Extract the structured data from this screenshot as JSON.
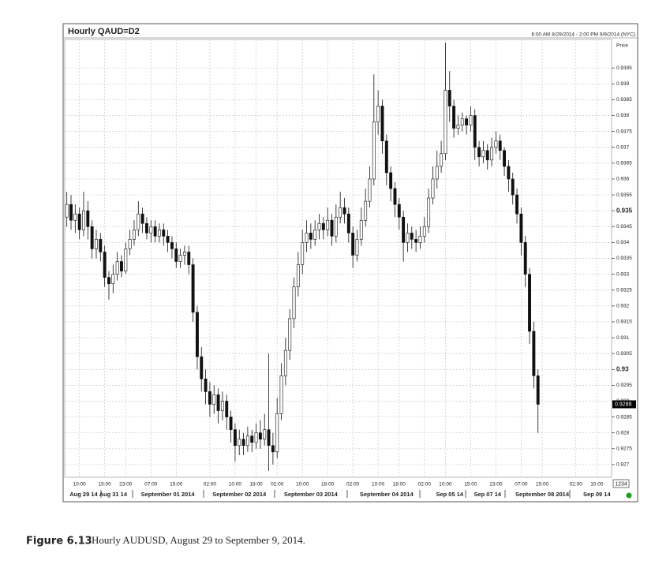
{
  "chart_data": {
    "type": "candlestick",
    "title": "Hourly QAUD=D2",
    "subtitle": "6:00 AM 8/29/2014 - 2:00 PM 9/9/2014 (NYC)",
    "y_label": "Price",
    "categories": [
      null,
      null,
      null,
      "10:00",
      null,
      null,
      null,
      null,
      null,
      "15:00",
      null,
      null,
      null,
      null,
      "23:00",
      null,
      null,
      null,
      null,
      null,
      "07:00",
      null,
      null,
      null,
      null,
      null,
      "15:00",
      null,
      null,
      null,
      null,
      null,
      null,
      null,
      "02:00",
      null,
      null,
      null,
      null,
      null,
      "10:00",
      null,
      null,
      null,
      null,
      "18:00",
      null,
      null,
      null,
      null,
      "02:00",
      null,
      null,
      null,
      null,
      null,
      "10:00",
      null,
      null,
      null,
      null,
      null,
      "18:00",
      null,
      null,
      null,
      null,
      null,
      "02:00",
      null,
      null,
      null,
      null,
      null,
      "10:00",
      null,
      null,
      null,
      null,
      "18:00",
      null,
      null,
      null,
      null,
      null,
      "02:00",
      null,
      null,
      null,
      null,
      "10:00",
      null,
      null,
      null,
      null,
      null,
      "15:00",
      null,
      null,
      null,
      null,
      null,
      "23:00",
      null,
      null,
      null,
      null,
      null,
      "07:00",
      null,
      null,
      null,
      null,
      "15:00",
      null,
      null,
      null,
      null,
      null,
      null,
      null,
      "02:00",
      null,
      null,
      null,
      null,
      "10:00",
      null,
      null,
      null
    ],
    "date_labels": [
      null,
      null,
      null,
      null,
      "Aug 29 14",
      null,
      null,
      null,
      null,
      null,
      null,
      "Aug 31 14",
      null,
      null,
      null,
      null,
      null,
      null,
      null,
      null,
      null,
      null,
      null,
      null,
      "September 01 2014",
      null,
      null,
      null,
      null,
      null,
      null,
      null,
      null,
      null,
      null,
      null,
      null,
      null,
      null,
      null,
      null,
      "September 02 2014",
      null,
      null,
      null,
      null,
      null,
      null,
      null,
      null,
      null,
      null,
      null,
      null,
      null,
      null,
      null,
      null,
      "September 03 2014",
      null,
      null,
      null,
      null,
      null,
      null,
      null,
      null,
      null,
      null,
      null,
      null,
      null,
      null,
      null,
      null,
      null,
      "September 04 2014",
      null,
      null,
      null,
      null,
      null,
      null,
      null,
      null,
      null,
      null,
      null,
      null,
      null,
      null,
      "Sep 05 14",
      null,
      null,
      null,
      null,
      null,
      null,
      null,
      null,
      "Sep 07 14",
      null,
      null,
      null,
      null,
      null,
      null,
      null,
      null,
      null,
      null,
      null,
      null,
      "September 08 2014",
      null,
      null,
      null,
      null,
      null,
      null,
      null,
      null,
      null,
      null,
      null,
      null,
      "Sep 09 14",
      null,
      null,
      null,
      null
    ],
    "open": [
      0.9348,
      0.9352,
      0.9347,
      0.9349,
      0.9344,
      0.935,
      0.9345,
      0.9338,
      0.9341,
      0.9337,
      0.9329,
      0.9327,
      0.933,
      0.9334,
      0.9331,
      0.9338,
      0.9341,
      0.9344,
      0.9349,
      0.9346,
      0.9343,
      0.9345,
      0.9342,
      0.9344,
      0.9342,
      0.934,
      0.9338,
      0.9334,
      0.9336,
      0.9337,
      0.9333,
      0.9318,
      0.9304,
      0.9297,
      0.9293,
      0.9289,
      0.9292,
      0.9287,
      0.929,
      0.9285,
      0.9281,
      0.9276,
      0.9278,
      0.9276,
      0.9279,
      0.9277,
      0.928,
      0.9278,
      0.9281,
      0.9276,
      0.9274,
      0.9286,
      0.9298,
      0.9306,
      0.9316,
      0.9326,
      0.9333,
      0.934,
      0.9343,
      0.9341,
      0.9344,
      0.9346,
      0.9344,
      0.9347,
      0.9342,
      0.9348,
      0.9351,
      0.9349,
      0.9343,
      0.9336,
      0.9341,
      0.9347,
      0.9353,
      0.936,
      0.9378,
      0.9383,
      0.9372,
      0.9362,
      0.9357,
      0.9352,
      0.9348,
      0.934,
      0.9343,
      0.9341,
      0.934,
      0.9342,
      0.9345,
      0.9354,
      0.936,
      0.9364,
      0.9368,
      0.9388,
      0.9383,
      0.9376,
      0.9377,
      0.9379,
      0.9377,
      0.938,
      0.937,
      0.9367,
      0.9369,
      0.9366,
      0.937,
      0.9372,
      0.9369,
      0.9364,
      0.936,
      0.9355,
      0.9349,
      0.934,
      0.933,
      0.9312,
      0.9298,
      null,
      null,
      null,
      null,
      null,
      null,
      null,
      null,
      null,
      null,
      null,
      null,
      null,
      null,
      null,
      null,
      null
    ],
    "high": [
      0.9356,
      0.9355,
      0.9352,
      0.9351,
      0.9356,
      0.9353,
      0.9347,
      0.9344,
      0.9343,
      0.9339,
      0.9331,
      0.9333,
      0.9337,
      0.9336,
      0.934,
      0.9344,
      0.9347,
      0.9353,
      0.9351,
      0.9348,
      0.9347,
      0.9347,
      0.9346,
      0.9346,
      0.9344,
      0.9342,
      0.934,
      0.9338,
      0.9339,
      0.9339,
      0.9335,
      0.932,
      0.9307,
      0.93,
      0.9296,
      0.9295,
      0.9294,
      0.9293,
      0.9292,
      0.9287,
      0.9283,
      0.9281,
      0.928,
      0.9282,
      0.9281,
      0.9283,
      0.9284,
      0.9286,
      0.9305,
      0.928,
      0.9291,
      0.9302,
      0.931,
      0.9319,
      0.9329,
      0.9337,
      0.9344,
      0.9347,
      0.9346,
      0.9347,
      0.9349,
      0.9348,
      0.9351,
      0.9349,
      0.9352,
      0.9356,
      0.9354,
      0.9351,
      0.9345,
      0.9344,
      0.9351,
      0.9357,
      0.9364,
      0.9393,
      0.9388,
      0.9385,
      0.9374,
      0.9364,
      0.9359,
      0.9354,
      0.935,
      0.9346,
      0.9345,
      0.9344,
      0.9345,
      0.9348,
      0.9357,
      0.9364,
      0.9369,
      0.9372,
      0.9403,
      0.9394,
      0.9385,
      0.938,
      0.9381,
      0.938,
      0.9383,
      0.9382,
      0.9372,
      0.9372,
      0.9371,
      0.9373,
      0.9375,
      0.9374,
      0.937,
      0.9366,
      0.9362,
      0.9357,
      0.9351,
      0.9342,
      0.9332,
      0.9315,
      0.93,
      null,
      null,
      null,
      null,
      null,
      null,
      null,
      null,
      null,
      null,
      null,
      null,
      null,
      null,
      null,
      null,
      null
    ],
    "low": [
      0.9345,
      0.9344,
      0.9343,
      0.9341,
      0.9342,
      0.9341,
      0.9335,
      0.9335,
      0.9334,
      0.9326,
      0.9322,
      0.9324,
      0.9328,
      0.9329,
      0.933,
      0.9336,
      0.9339,
      0.9342,
      0.9343,
      0.9341,
      0.934,
      0.934,
      0.934,
      0.9339,
      0.9337,
      0.9335,
      0.9332,
      0.9332,
      0.9333,
      0.933,
      0.9315,
      0.93,
      0.9293,
      0.9289,
      0.9285,
      0.9286,
      0.9283,
      0.9284,
      0.9281,
      0.9277,
      0.9271,
      0.9273,
      0.9273,
      0.9274,
      0.9274,
      0.9275,
      0.9275,
      0.9276,
      0.9268,
      0.927,
      0.9272,
      0.9284,
      0.9295,
      0.9303,
      0.9313,
      0.9323,
      0.933,
      0.9337,
      0.9338,
      0.9339,
      0.9341,
      0.9341,
      0.9342,
      0.9339,
      0.934,
      0.9346,
      0.9346,
      0.934,
      0.9332,
      0.9334,
      0.9339,
      0.9345,
      0.9351,
      0.9358,
      0.9374,
      0.9368,
      0.9358,
      0.9353,
      0.9348,
      0.9344,
      0.9334,
      0.9337,
      0.9338,
      0.9337,
      0.9338,
      0.934,
      0.9343,
      0.9352,
      0.9357,
      0.9362,
      0.9366,
      0.9378,
      0.9373,
      0.9374,
      0.9375,
      0.9374,
      0.9375,
      0.9366,
      0.9364,
      0.9365,
      0.9363,
      0.9364,
      0.9368,
      0.9366,
      0.9361,
      0.9356,
      0.9352,
      0.9346,
      0.9336,
      0.9326,
      0.9308,
      0.9294,
      0.928,
      null,
      null,
      null,
      null,
      null,
      null,
      null,
      null,
      null,
      null,
      null,
      null,
      null,
      null,
      null,
      null,
      null
    ],
    "close": [
      0.9352,
      0.9347,
      0.9349,
      0.9344,
      0.935,
      0.9345,
      0.9338,
      0.9341,
      0.9337,
      0.9329,
      0.9327,
      0.933,
      0.9334,
      0.9331,
      0.9338,
      0.9341,
      0.9344,
      0.9349,
      0.9346,
      0.9343,
      0.9345,
      0.9342,
      0.9344,
      0.9342,
      0.934,
      0.9338,
      0.9334,
      0.9336,
      0.9337,
      0.9333,
      0.9318,
      0.9304,
      0.9297,
      0.9293,
      0.9289,
      0.9292,
      0.9287,
      0.929,
      0.9285,
      0.9281,
      0.9276,
      0.9278,
      0.9276,
      0.9279,
      0.9277,
      0.928,
      0.9278,
      0.9281,
      0.9276,
      0.9274,
      0.9286,
      0.9298,
      0.9306,
      0.9316,
      0.9326,
      0.9333,
      0.934,
      0.9343,
      0.9341,
      0.9344,
      0.9346,
      0.9344,
      0.9347,
      0.9342,
      0.9348,
      0.9351,
      0.9349,
      0.9343,
      0.9336,
      0.9341,
      0.9347,
      0.9353,
      0.936,
      0.9378,
      0.9383,
      0.9372,
      0.9362,
      0.9357,
      0.9352,
      0.9348,
      0.934,
      0.9343,
      0.9341,
      0.934,
      0.9342,
      0.9345,
      0.9354,
      0.936,
      0.9364,
      0.9368,
      0.9388,
      0.9383,
      0.9376,
      0.9377,
      0.9379,
      0.9377,
      0.938,
      0.937,
      0.9367,
      0.9369,
      0.9366,
      0.937,
      0.9372,
      0.9369,
      0.9364,
      0.936,
      0.9355,
      0.9349,
      0.934,
      0.933,
      0.9312,
      0.9298,
      0.9289,
      null,
      null,
      null,
      null,
      null,
      null,
      null,
      null,
      null,
      null,
      null,
      null,
      null,
      null,
      null,
      null,
      null
    ],
    "ylim": [
      0.9266,
      0.9404
    ],
    "yticks": [
      0.927,
      0.9275,
      0.928,
      0.9285,
      0.929,
      0.9295,
      0.93,
      0.9305,
      0.931,
      0.9315,
      0.932,
      0.9325,
      0.933,
      0.9335,
      0.934,
      0.9345,
      0.935,
      0.9355,
      0.936,
      0.9365,
      0.937,
      0.9375,
      0.938,
      0.9385,
      0.939,
      0.9395
    ],
    "grid": true,
    "up_color": "#ffffff",
    "down_color": "#111111",
    "wick_color": "#111111",
    "last_price": 0.9289,
    "corner_box": "1234"
  },
  "caption": {
    "label": "Figure 6.13",
    "text": "Hourly AUDUSD, August 29 to September 9, 2014."
  }
}
